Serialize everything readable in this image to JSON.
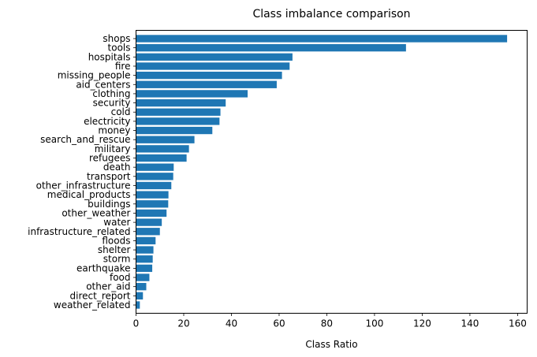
{
  "chart_data": {
    "type": "bar",
    "orientation": "horizontal",
    "title": "Class imbalance comparison",
    "xlabel": "Class Ratio",
    "ylabel": "",
    "xlim": [
      0,
      164
    ],
    "xticks": [
      0,
      20,
      40,
      60,
      80,
      100,
      120,
      140,
      160
    ],
    "bar_color": "#1f77b4",
    "grid": false,
    "categories": [
      "shops",
      "tools",
      "hospitals",
      "fire",
      "missing_people",
      "aid_centers",
      "clothing",
      "security",
      "cold",
      "electricity",
      "money",
      "search_and_rescue",
      "military",
      "refugees",
      "death",
      "transport",
      "other_infrastructure",
      "medical_products",
      "buildings",
      "other_weather",
      "water",
      "infrastructure_related",
      "floods",
      "shelter",
      "storm",
      "earthquake",
      "food",
      "other_aid",
      "direct_report",
      "weather_related"
    ],
    "values": [
      155.6,
      113.2,
      65.6,
      64.4,
      61.2,
      59.0,
      46.8,
      37.6,
      35.4,
      35.0,
      32.0,
      24.5,
      22.2,
      21.2,
      15.8,
      15.6,
      14.8,
      13.6,
      13.5,
      12.8,
      10.8,
      10.0,
      8.2,
      7.3,
      7.0,
      6.8,
      5.6,
      4.3,
      2.9,
      1.6
    ]
  }
}
